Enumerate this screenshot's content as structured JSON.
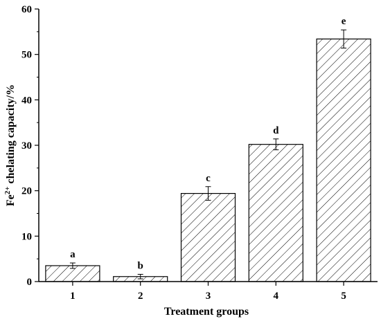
{
  "chart_data": {
    "type": "bar",
    "categories": [
      "1",
      "2",
      "3",
      "4",
      "5"
    ],
    "values": [
      3.5,
      1.1,
      19.4,
      30.2,
      53.4
    ],
    "errors": [
      0.6,
      0.5,
      1.5,
      1.2,
      2.0
    ],
    "significance_labels": [
      "a",
      "b",
      "c",
      "d",
      "e"
    ],
    "xlabel": "Treatment groups",
    "ylabel_parts": {
      "base": "Fe",
      "sup": "2+",
      "rest": " chelating capacity/%"
    },
    "ylim": [
      0,
      60
    ],
    "yticks": [
      0,
      10,
      20,
      30,
      40,
      50,
      60
    ],
    "bar_pattern": "diagonal-hatch",
    "bar_color": "#000000",
    "grid": false,
    "legend": "none"
  }
}
